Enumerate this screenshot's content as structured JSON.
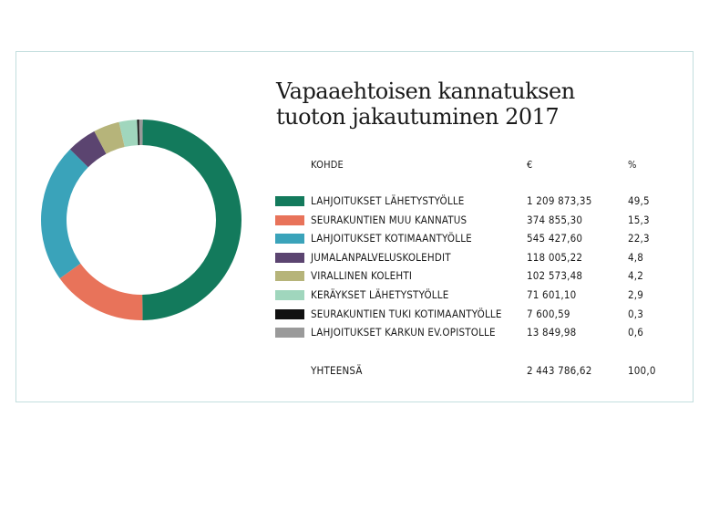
{
  "title_line1": "Vapaaehtoisen kannatuksen",
  "title_line2": "tuoton jakautuminen 2017",
  "table": {
    "headers": {
      "label": "KOHDE",
      "eur": "€",
      "pct": "%"
    },
    "total": {
      "label": "YHTEENSÄ",
      "eur": "2 443 786,62",
      "pct": "100,0"
    }
  },
  "chart_data": {
    "type": "pie",
    "donut": true,
    "slices": [
      {
        "label": "LAHJOITUKSET LÄHETYSTYÖLLE",
        "eur": "1 209 873,35",
        "pct_text": "49,5",
        "value": 49.5,
        "color": "#137a5c"
      },
      {
        "label": "SEURAKUNTIEN MUU KANNATUS",
        "eur": "374 855,30",
        "pct_text": "15,3",
        "value": 15.3,
        "color": "#e8735a"
      },
      {
        "label": "LAHJOITUKSET KOTIMAANTYÖLLE",
        "eur": "545 427,60",
        "pct_text": "22,3",
        "value": 22.3,
        "color": "#3aa3ba"
      },
      {
        "label": "JUMALANPALVELUSKOLEHDIT",
        "eur": "118 005,22",
        "pct_text": "4,8",
        "value": 4.8,
        "color": "#5b4470"
      },
      {
        "label": "VIRALLINEN KOLEHTI",
        "eur": "102 573,48",
        "pct_text": "4,2",
        "value": 4.2,
        "color": "#b6b47a"
      },
      {
        "label": "KERÄYKSET LÄHETYSTYÖLLE",
        "eur": "71 601,10",
        "pct_text": "2,9",
        "value": 2.9,
        "color": "#a0d6bd"
      },
      {
        "label": "SEURAKUNTIEN TUKI KOTIMAANTYÖLLE",
        "eur": "7 600,59",
        "pct_text": "0,3",
        "value": 0.3,
        "color": "#111111"
      },
      {
        "label": "LAHJOITUKSET KARKUN EV.OPISTOLLE",
        "eur": "13 849,98",
        "pct_text": "0,6",
        "value": 0.6,
        "color": "#9a9a9a"
      }
    ]
  }
}
